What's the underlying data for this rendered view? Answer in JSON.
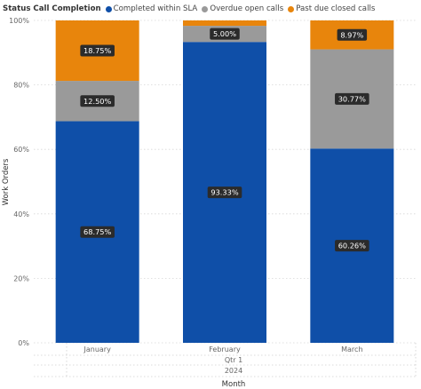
{
  "chart_data": {
    "type": "bar",
    "stacked": true,
    "legend_title": "Status Call Completion",
    "categories": [
      "January",
      "February",
      "March"
    ],
    "series": [
      {
        "name": "Completed within SLA",
        "color": "#0f4fa8",
        "values": [
          68.75,
          93.33,
          60.26
        ]
      },
      {
        "name": "Overdue open calls",
        "color": "#9a9a9a",
        "values": [
          12.5,
          5.0,
          30.77
        ]
      },
      {
        "name": "Past due closed calls",
        "color": "#e8850c",
        "values": [
          18.75,
          1.67,
          8.97
        ]
      }
    ],
    "data_labels": [
      [
        "68.75%",
        "93.33%",
        "60.26%"
      ],
      [
        "12.50%",
        "5.00%",
        "30.77%"
      ],
      [
        "18.75%",
        "",
        "8.97%"
      ]
    ],
    "y_ticks": [
      "0%",
      "20%",
      "40%",
      "60%",
      "80%",
      "100%"
    ],
    "ylim": [
      0,
      100
    ],
    "ylabel": "Work Orders",
    "xlabel": "Month",
    "x_group_labels": {
      "quarter": "Qtr 1",
      "year": "2024"
    },
    "grid": true,
    "legend_position": "top-left"
  }
}
